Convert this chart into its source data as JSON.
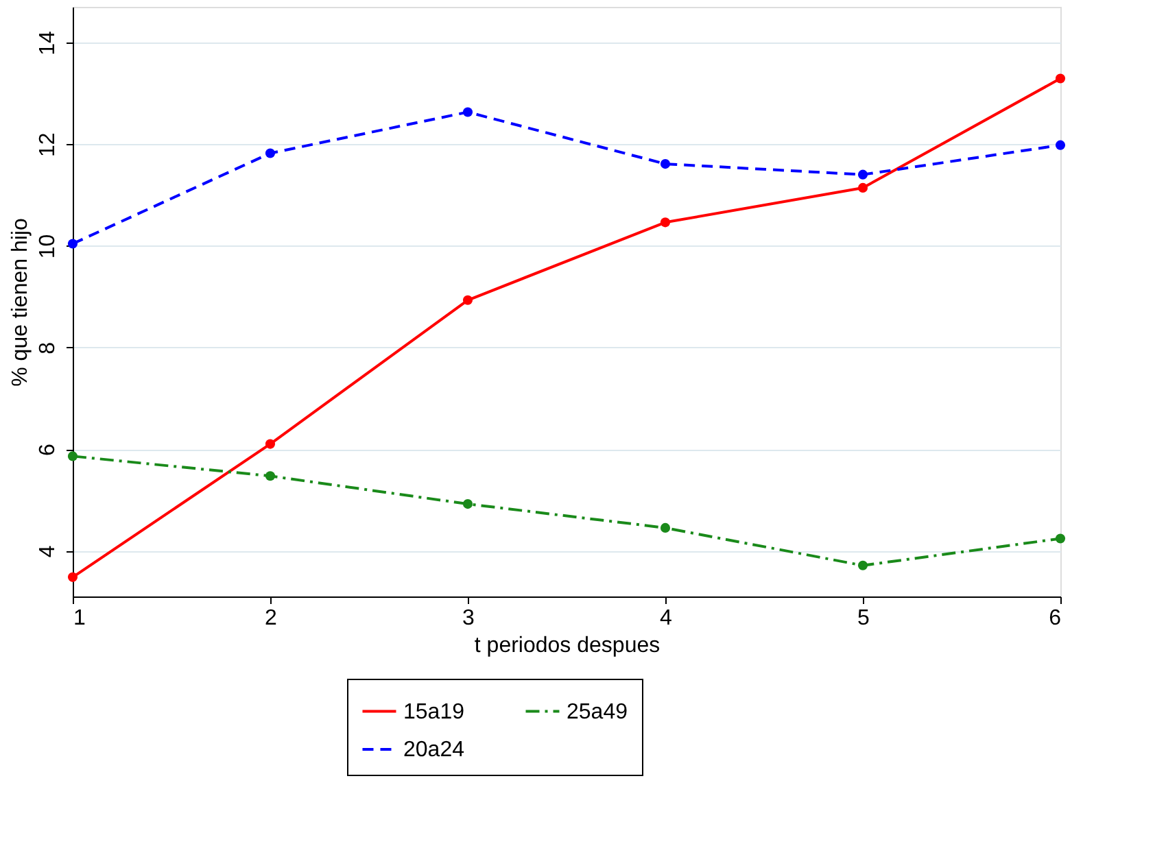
{
  "chart_data": {
    "type": "line",
    "xlabel": "t periodos despues",
    "ylabel": "% que tienen hijo",
    "x": [
      1,
      2,
      3,
      4,
      5,
      6
    ],
    "xlim": [
      1,
      6
    ],
    "xticks": [
      1,
      2,
      3,
      4,
      5,
      6
    ],
    "ylim": [
      3.1,
      14.7
    ],
    "yticks": [
      4,
      6,
      8,
      10,
      12,
      14
    ],
    "grid": "y",
    "legend": "bottom",
    "marker": "circle",
    "series": [
      {
        "name": "15a19",
        "color": "#ff0000",
        "line_style": "solid",
        "values": [
          3.48,
          6.1,
          8.93,
          10.46,
          11.14,
          13.29
        ]
      },
      {
        "name": "20a24",
        "color": "#0000ff",
        "line_style": "dashed",
        "values": [
          10.04,
          11.82,
          12.63,
          11.61,
          11.4,
          11.98
        ]
      },
      {
        "name": "25a49",
        "color": "#1a8a1a",
        "line_style": "dashdot",
        "values": [
          5.86,
          5.47,
          4.92,
          4.45,
          3.71,
          4.24
        ]
      }
    ]
  }
}
